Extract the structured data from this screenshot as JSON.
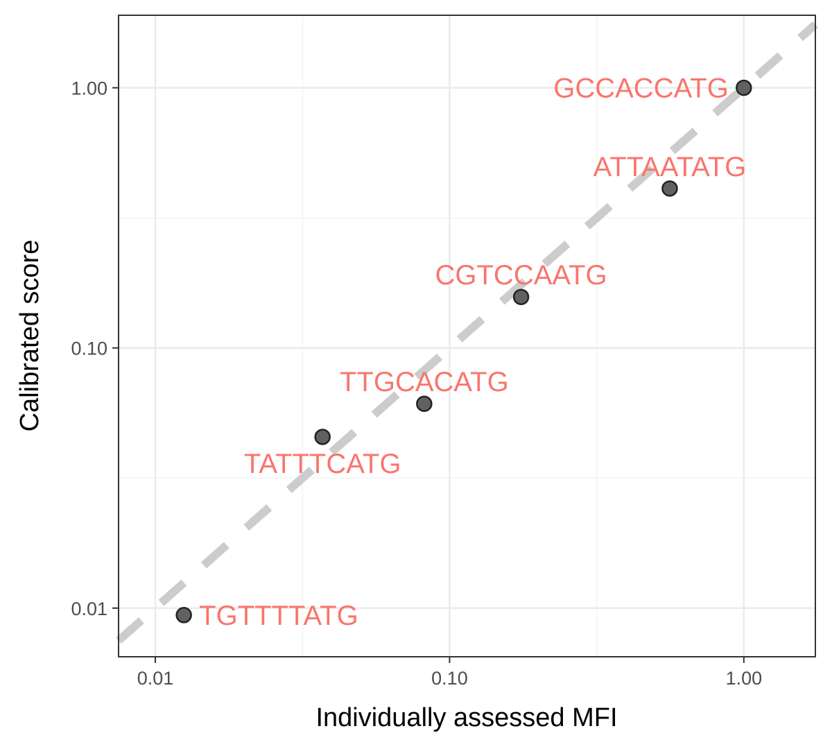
{
  "chart_data": {
    "type": "scatter",
    "title": "",
    "xlabel": "Individually assessed MFI",
    "ylabel": "Calibrated score",
    "x_scale": "log10",
    "y_scale": "log10",
    "xlim": [
      0.0075,
      1.75
    ],
    "ylim": [
      0.0065,
      1.9
    ],
    "x_ticks": [
      {
        "value": 0.01,
        "label": "0.01"
      },
      {
        "value": 0.1,
        "label": "0.10"
      },
      {
        "value": 1.0,
        "label": "1.00"
      }
    ],
    "y_ticks": [
      {
        "value": 0.01,
        "label": "0.01"
      },
      {
        "value": 0.1,
        "label": "0.10"
      },
      {
        "value": 1.0,
        "label": "1.00"
      }
    ],
    "grid": true,
    "reference_line": {
      "type": "identity",
      "style": "dashed",
      "color": "#cccccc"
    },
    "point_color": "#595959",
    "label_color": "#f8766d",
    "points": [
      {
        "label": "GCCACCATG",
        "x": 1.0,
        "y": 1.0,
        "label_side": "left"
      },
      {
        "label": "ATTAATATG",
        "x": 0.56,
        "y": 0.41,
        "label_side": "above"
      },
      {
        "label": "CGTCCAATG",
        "x": 0.175,
        "y": 0.157,
        "label_side": "above"
      },
      {
        "label": "TTGCACATG",
        "x": 0.082,
        "y": 0.061,
        "label_side": "above"
      },
      {
        "label": "TATTTCATG",
        "x": 0.037,
        "y": 0.0455,
        "label_side": "below"
      },
      {
        "label": "TGTTTTATG",
        "x": 0.0125,
        "y": 0.0094,
        "label_side": "right"
      }
    ]
  }
}
